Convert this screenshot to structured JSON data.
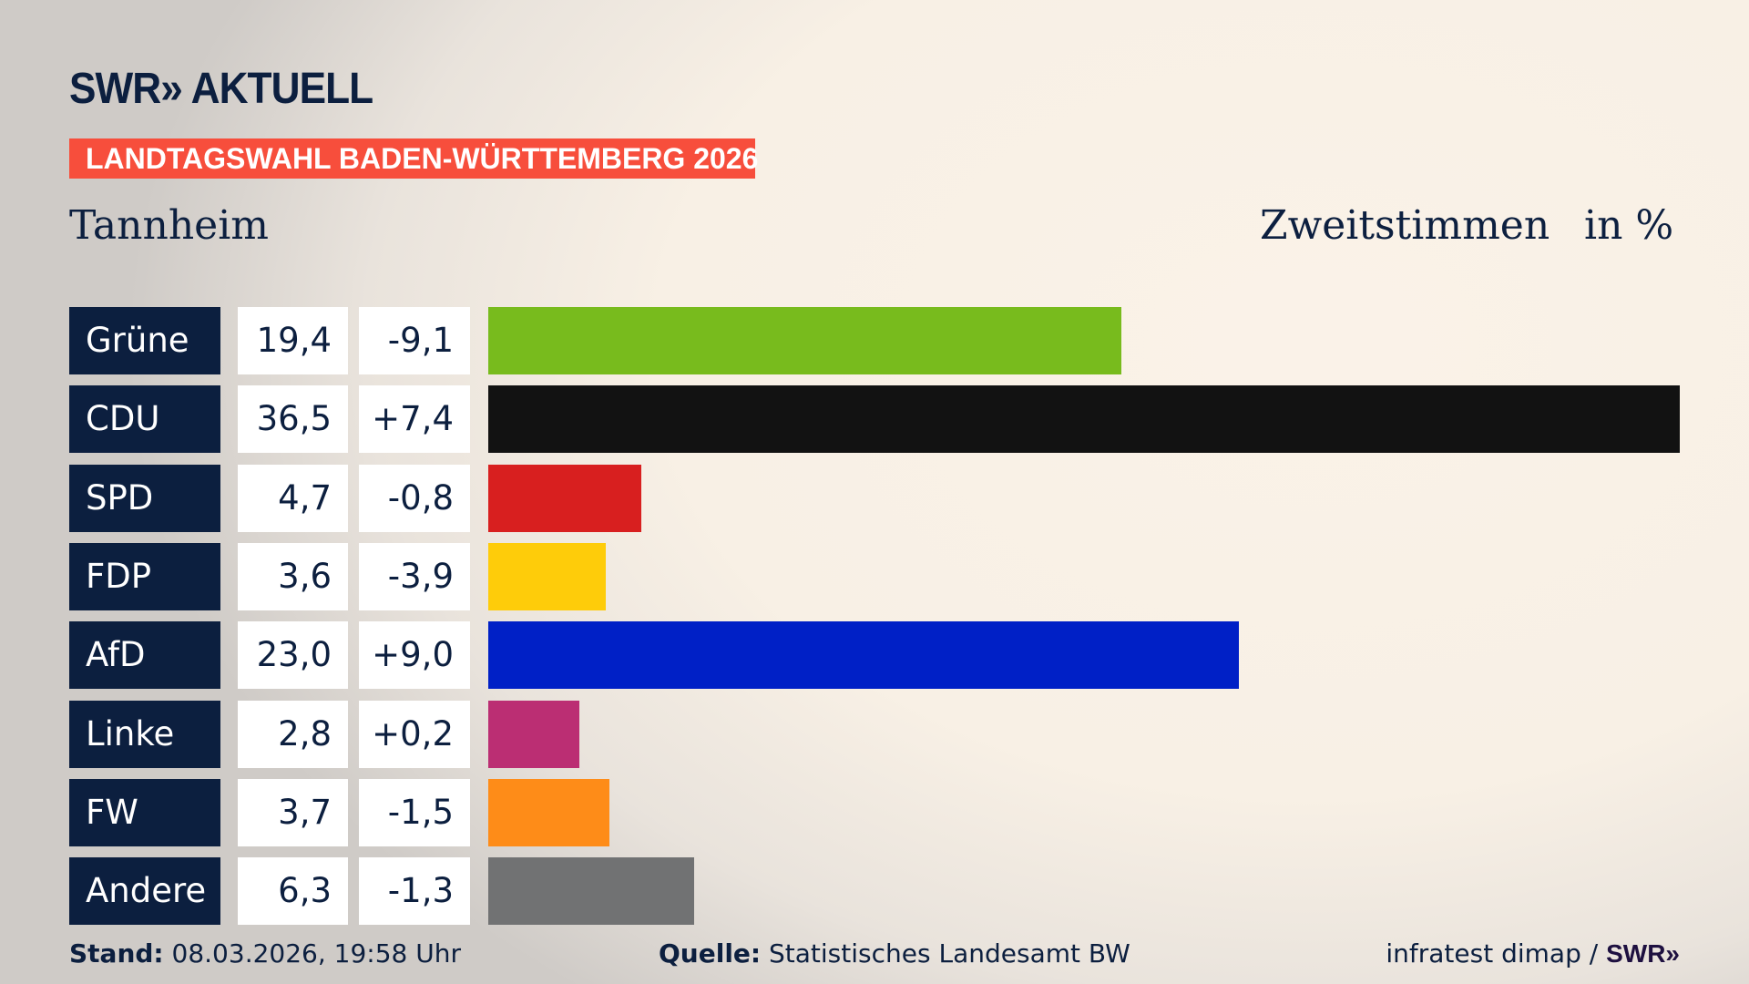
{
  "header": {
    "logo": "SWR» AKTUELL",
    "banner": "LANDTAGSWAHL BADEN-WÜRTTEMBERG 2026",
    "region": "Tannheim",
    "vote_type": "Zweitstimmen",
    "unit": "in %"
  },
  "chart_data": {
    "type": "bar",
    "orientation": "horizontal",
    "categories": [
      "Grüne",
      "CDU",
      "SPD",
      "FDP",
      "AfD",
      "Linke",
      "FW",
      "Andere"
    ],
    "values": [
      19.4,
      36.5,
      4.7,
      3.6,
      23.0,
      2.8,
      3.7,
      6.3
    ],
    "value_labels": [
      "19,4",
      "36,5",
      "4,7",
      "3,6",
      "23,0",
      "2,8",
      "3,7",
      "6,3"
    ],
    "change_labels": [
      "-9,1",
      "+7,4",
      "-0,8",
      "-3,9",
      "+9,0",
      "+0,2",
      "-1,5",
      "-1,3"
    ],
    "colors": [
      "#78bb1d",
      "#121212",
      "#d81f1f",
      "#fecc0a",
      "#0020c6",
      "#bb2e73",
      "#fe8c18",
      "#717273"
    ],
    "xlim": [
      0,
      36.5
    ],
    "grid": false
  },
  "footer": {
    "stand_label": "Stand:",
    "stand_value": "08.03.2026, 19:58 Uhr",
    "source_label": "Quelle:",
    "source_value": "Statistisches Landesamt BW",
    "credit": "infratest dimap / ",
    "credit_logo": "SWR»"
  }
}
